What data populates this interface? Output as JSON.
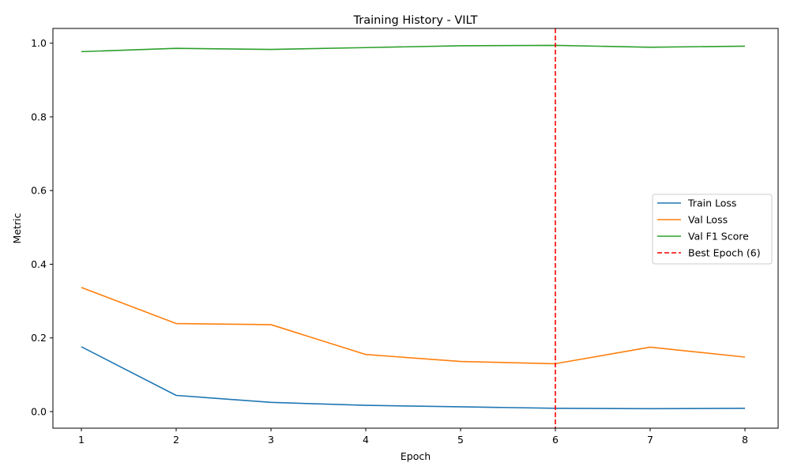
{
  "chart_data": {
    "type": "line",
    "title": "Training History - VILT",
    "xlabel": "Epoch",
    "ylabel": "Metric",
    "x": [
      1,
      2,
      3,
      4,
      5,
      6,
      7,
      8
    ],
    "xlim": [
      0.7,
      8.35
    ],
    "ylim": [
      -0.045,
      1.04
    ],
    "xticks": [
      1,
      2,
      3,
      4,
      5,
      6,
      7,
      8
    ],
    "yticks": [
      0.0,
      0.2,
      0.4,
      0.6,
      0.8,
      1.0
    ],
    "ytick_labels": [
      "0.0",
      "0.2",
      "0.4",
      "0.6",
      "0.8",
      "1.0"
    ],
    "grid": false,
    "legend_position": "center-right",
    "series": [
      {
        "name": "Train Loss",
        "color": "#1f77b4",
        "values": [
          0.176,
          0.044,
          0.025,
          0.017,
          0.013,
          0.009,
          0.008,
          0.009
        ]
      },
      {
        "name": "Val Loss",
        "color": "#ff7f0e",
        "values": [
          0.337,
          0.239,
          0.236,
          0.155,
          0.136,
          0.13,
          0.175,
          0.148
        ]
      },
      {
        "name": "Val F1 Score",
        "color": "#2ca02c",
        "values": [
          0.977,
          0.986,
          0.983,
          0.988,
          0.993,
          0.994,
          0.989,
          0.992
        ]
      }
    ],
    "vline": {
      "name": "Best Epoch (6)",
      "x": 6,
      "color": "#ff0000",
      "style": "dashed"
    }
  }
}
